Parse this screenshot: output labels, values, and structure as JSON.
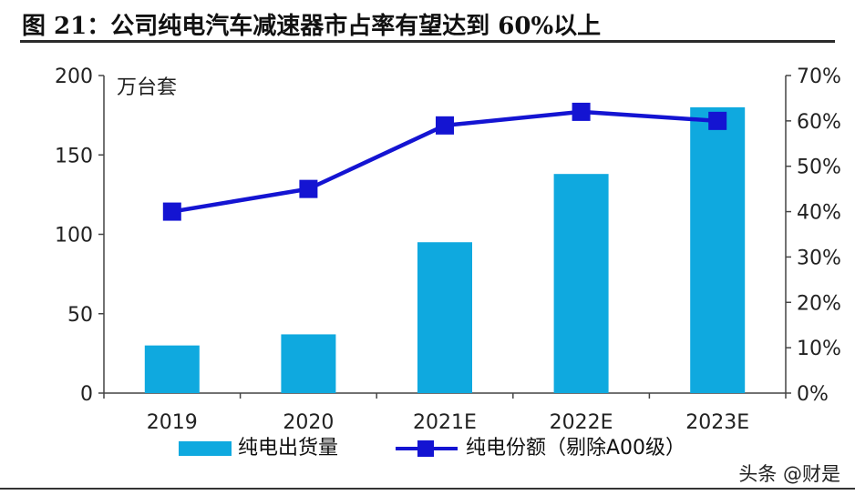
{
  "title": "图 21：公司纯电汽车减速器市占率有望达到 60%以上",
  "watermark": "头条 @财是",
  "chart_data": {
    "type": "bar+line",
    "unit_label": "万台套",
    "categories": [
      "2019",
      "2020",
      "2021E",
      "2022E",
      "2023E"
    ],
    "series": [
      {
        "name": "纯电出货量",
        "type": "bar",
        "axis": "left",
        "color": "#0fa9df",
        "values": [
          30,
          37,
          95,
          138,
          180
        ]
      },
      {
        "name": "纯电份额（剔除A00级）",
        "type": "line",
        "axis": "right",
        "color": "#1414d2",
        "values": [
          0.4,
          0.45,
          0.59,
          0.62,
          0.6
        ]
      }
    ],
    "y_left": {
      "min": 0,
      "max": 200,
      "ticks": [
        "0",
        "50",
        "100",
        "150",
        "200"
      ]
    },
    "y_right": {
      "min": 0,
      "max": 0.7,
      "ticks": [
        "0%",
        "10%",
        "20%",
        "30%",
        "40%",
        "50%",
        "60%",
        "70%"
      ]
    },
    "grid": false,
    "legend": "bottom"
  }
}
